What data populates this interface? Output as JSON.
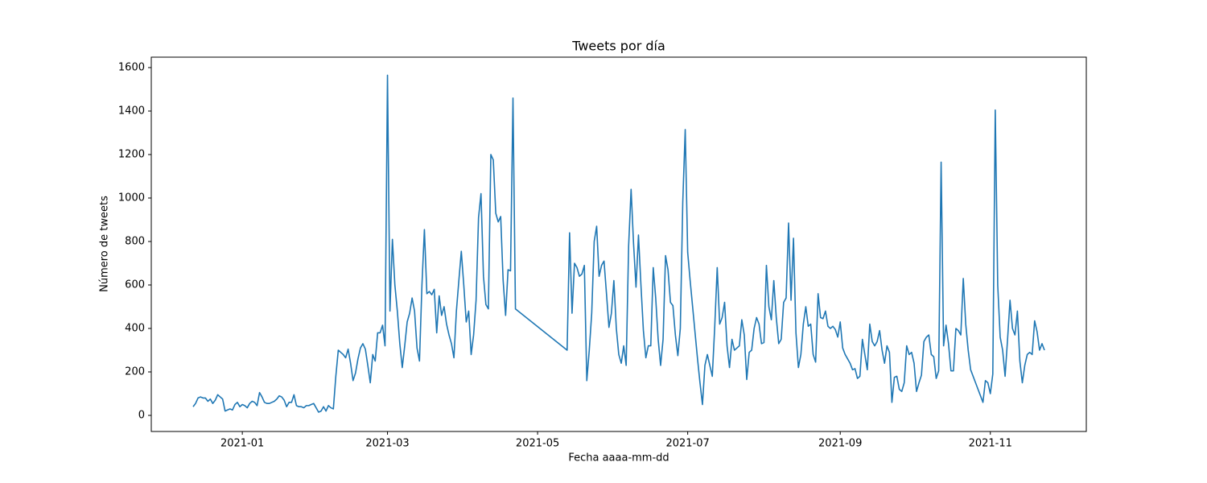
{
  "chart_data": {
    "type": "line",
    "title": "Tweets por día",
    "xlabel": "Fecha aaaa-mm-dd",
    "ylabel": "Número de tweets",
    "xlim": [
      "2020-11-25",
      "2021-12-10"
    ],
    "ylim": [
      -74,
      1648
    ],
    "xticks": [
      {
        "value": "2021-01-01",
        "label": "2021-01"
      },
      {
        "value": "2021-03-01",
        "label": "2021-03"
      },
      {
        "value": "2021-05-01",
        "label": "2021-05"
      },
      {
        "value": "2021-07-01",
        "label": "2021-07"
      },
      {
        "value": "2021-09-01",
        "label": "2021-09"
      },
      {
        "value": "2021-11-01",
        "label": "2021-11"
      }
    ],
    "yticks": [
      0,
      200,
      400,
      600,
      800,
      1000,
      1200,
      1400,
      1600
    ],
    "color": "#1f77b4",
    "x": [
      "2020-12-12",
      "2020-12-13",
      "2020-12-14",
      "2020-12-15",
      "2020-12-16",
      "2020-12-17",
      "2020-12-18",
      "2020-12-19",
      "2020-12-20",
      "2020-12-21",
      "2020-12-22",
      "2020-12-23",
      "2020-12-24",
      "2020-12-25",
      "2020-12-26",
      "2020-12-27",
      "2020-12-28",
      "2020-12-29",
      "2020-12-30",
      "2020-12-31",
      "2021-01-01",
      "2021-01-02",
      "2021-01-03",
      "2021-01-04",
      "2021-01-05",
      "2021-01-06",
      "2021-01-07",
      "2021-01-08",
      "2021-01-09",
      "2021-01-10",
      "2021-01-11",
      "2021-01-12",
      "2021-01-13",
      "2021-01-14",
      "2021-01-15",
      "2021-01-16",
      "2021-01-17",
      "2021-01-18",
      "2021-01-19",
      "2021-01-20",
      "2021-01-21",
      "2021-01-22",
      "2021-01-23",
      "2021-01-24",
      "2021-01-25",
      "2021-01-26",
      "2021-01-27",
      "2021-01-28",
      "2021-01-29",
      "2021-01-30",
      "2021-01-31",
      "2021-02-01",
      "2021-02-02",
      "2021-02-03",
      "2021-02-04",
      "2021-02-05",
      "2021-02-06",
      "2021-02-07",
      "2021-02-08",
      "2021-02-09",
      "2021-02-10",
      "2021-02-11",
      "2021-02-12",
      "2021-02-13",
      "2021-02-14",
      "2021-02-15",
      "2021-02-16",
      "2021-02-17",
      "2021-02-18",
      "2021-02-19",
      "2021-02-20",
      "2021-02-21",
      "2021-02-22",
      "2021-02-23",
      "2021-02-24",
      "2021-02-25",
      "2021-02-26",
      "2021-02-27",
      "2021-02-28",
      "2021-03-01",
      "2021-03-02",
      "2021-03-03",
      "2021-03-04",
      "2021-03-05",
      "2021-03-06",
      "2021-03-07",
      "2021-03-08",
      "2021-03-09",
      "2021-03-10",
      "2021-03-11",
      "2021-03-12",
      "2021-03-13",
      "2021-03-14",
      "2021-03-15",
      "2021-03-16",
      "2021-03-17",
      "2021-03-18",
      "2021-03-19",
      "2021-03-20",
      "2021-03-21",
      "2021-03-22",
      "2021-03-23",
      "2021-03-24",
      "2021-03-25",
      "2021-03-26",
      "2021-03-27",
      "2021-03-28",
      "2021-03-29",
      "2021-03-30",
      "2021-03-31",
      "2021-04-01",
      "2021-04-02",
      "2021-04-03",
      "2021-04-04",
      "2021-04-05",
      "2021-04-06",
      "2021-04-07",
      "2021-04-08",
      "2021-04-09",
      "2021-04-10",
      "2021-04-11",
      "2021-04-12",
      "2021-04-13",
      "2021-04-14",
      "2021-04-15",
      "2021-04-16",
      "2021-04-17",
      "2021-04-18",
      "2021-04-19",
      "2021-04-20",
      "2021-04-21",
      "2021-04-22",
      "2021-05-13",
      "2021-05-14",
      "2021-05-15",
      "2021-05-16",
      "2021-05-17",
      "2021-05-18",
      "2021-05-19",
      "2021-05-20",
      "2021-05-21",
      "2021-05-22",
      "2021-05-23",
      "2021-05-24",
      "2021-05-25",
      "2021-05-26",
      "2021-05-27",
      "2021-05-28",
      "2021-05-29",
      "2021-05-30",
      "2021-05-31",
      "2021-06-01",
      "2021-06-02",
      "2021-06-03",
      "2021-06-04",
      "2021-06-05",
      "2021-06-06",
      "2021-06-07",
      "2021-06-08",
      "2021-06-09",
      "2021-06-10",
      "2021-06-11",
      "2021-06-12",
      "2021-06-13",
      "2021-06-14",
      "2021-06-15",
      "2021-06-16",
      "2021-06-17",
      "2021-06-18",
      "2021-06-19",
      "2021-06-20",
      "2021-06-21",
      "2021-06-22",
      "2021-06-23",
      "2021-06-24",
      "2021-06-25",
      "2021-06-26",
      "2021-06-27",
      "2021-06-28",
      "2021-06-29",
      "2021-06-30",
      "2021-07-01",
      "2021-07-02",
      "2021-07-03",
      "2021-07-04",
      "2021-07-05",
      "2021-07-06",
      "2021-07-07",
      "2021-07-08",
      "2021-07-09",
      "2021-07-10",
      "2021-07-11",
      "2021-07-12",
      "2021-07-13",
      "2021-07-14",
      "2021-07-15",
      "2021-07-16",
      "2021-07-17",
      "2021-07-18",
      "2021-07-19",
      "2021-07-20",
      "2021-07-21",
      "2021-07-22",
      "2021-07-23",
      "2021-07-24",
      "2021-07-25",
      "2021-07-26",
      "2021-07-27",
      "2021-07-28",
      "2021-07-29",
      "2021-07-30",
      "2021-07-31",
      "2021-08-01",
      "2021-08-02",
      "2021-08-03",
      "2021-08-04",
      "2021-08-05",
      "2021-08-06",
      "2021-08-07",
      "2021-08-08",
      "2021-08-09",
      "2021-08-10",
      "2021-08-11",
      "2021-08-12",
      "2021-08-13",
      "2021-08-14",
      "2021-08-15",
      "2021-08-16",
      "2021-08-17",
      "2021-08-18",
      "2021-08-19",
      "2021-08-20",
      "2021-08-21",
      "2021-08-22",
      "2021-08-23",
      "2021-08-24",
      "2021-08-25",
      "2021-08-26",
      "2021-08-27",
      "2021-08-28",
      "2021-08-29",
      "2021-08-30",
      "2021-08-31",
      "2021-09-01",
      "2021-09-02",
      "2021-09-03",
      "2021-09-04",
      "2021-09-05",
      "2021-09-06",
      "2021-09-07",
      "2021-09-08",
      "2021-09-09",
      "2021-09-10",
      "2021-09-11",
      "2021-09-12",
      "2021-09-13",
      "2021-09-14",
      "2021-09-15",
      "2021-09-16",
      "2021-09-17",
      "2021-09-18",
      "2021-09-19",
      "2021-09-20",
      "2021-09-21",
      "2021-09-22",
      "2021-09-23",
      "2021-09-24",
      "2021-09-25",
      "2021-09-26",
      "2021-09-27",
      "2021-09-28",
      "2021-09-29",
      "2021-09-30",
      "2021-10-01",
      "2021-10-02",
      "2021-10-03",
      "2021-10-04",
      "2021-10-05",
      "2021-10-06",
      "2021-10-07",
      "2021-10-08",
      "2021-10-09",
      "2021-10-10",
      "2021-10-11",
      "2021-10-12",
      "2021-10-13",
      "2021-10-14",
      "2021-10-15",
      "2021-10-16",
      "2021-10-17",
      "2021-10-18",
      "2021-10-19",
      "2021-10-20",
      "2021-10-21",
      "2021-10-22",
      "2021-10-23",
      "2021-10-24",
      "2021-10-25",
      "2021-10-26",
      "2021-10-27",
      "2021-10-28",
      "2021-10-29",
      "2021-10-30",
      "2021-10-31",
      "2021-11-01",
      "2021-11-02",
      "2021-11-03",
      "2021-11-04",
      "2021-11-05",
      "2021-11-06",
      "2021-11-07",
      "2021-11-08",
      "2021-11-09",
      "2021-11-10",
      "2021-11-11",
      "2021-11-12",
      "2021-11-13",
      "2021-11-14",
      "2021-11-15",
      "2021-11-16",
      "2021-11-17",
      "2021-11-18",
      "2021-11-19",
      "2021-11-20",
      "2021-11-21",
      "2021-11-22",
      "2021-11-23"
    ],
    "values": [
      40,
      55,
      80,
      85,
      80,
      80,
      65,
      75,
      55,
      70,
      95,
      85,
      75,
      20,
      25,
      30,
      25,
      50,
      60,
      40,
      50,
      45,
      35,
      55,
      65,
      60,
      45,
      105,
      85,
      60,
      55,
      55,
      60,
      65,
      75,
      90,
      85,
      70,
      40,
      60,
      60,
      95,
      45,
      40,
      40,
      35,
      45,
      45,
      50,
      55,
      35,
      15,
      20,
      40,
      20,
      45,
      35,
      30,
      180,
      300,
      290,
      280,
      265,
      305,
      240,
      160,
      195,
      260,
      310,
      330,
      305,
      230,
      150,
      280,
      250,
      380,
      380,
      415,
      320,
      1565,
      480,
      810,
      600,
      480,
      330,
      220,
      320,
      430,
      470,
      540,
      480,
      310,
      250,
      600,
      855,
      560,
      570,
      555,
      580,
      380,
      550,
      460,
      500,
      420,
      370,
      330,
      265,
      480,
      620,
      755,
      600,
      430,
      480,
      280,
      370,
      530,
      910,
      1020,
      640,
      510,
      490,
      1200,
      1175,
      930,
      890,
      915,
      620,
      460,
      670,
      665,
      1460,
      490,
      300,
      840,
      470,
      700,
      680,
      640,
      650,
      690,
      160,
      300,
      470,
      800,
      870,
      640,
      690,
      710,
      560,
      405,
      470,
      620,
      400,
      280,
      240,
      320,
      230,
      780,
      1040,
      790,
      590,
      830,
      600,
      390,
      265,
      320,
      320,
      680,
      540,
      350,
      230,
      350,
      735,
      670,
      520,
      505,
      370,
      275,
      400,
      980,
      1315,
      750,
      620,
      500,
      380,
      260,
      150,
      50,
      230,
      280,
      230,
      180,
      410,
      680,
      420,
      450,
      520,
      320,
      220,
      350,
      300,
      310,
      320,
      440,
      370,
      165,
      290,
      300,
      400,
      450,
      420,
      330,
      335,
      690,
      500,
      440,
      620,
      450,
      330,
      350,
      520,
      540,
      885,
      530,
      815,
      380,
      220,
      280,
      420,
      500,
      410,
      420,
      280,
      245,
      560,
      450,
      445,
      480,
      410,
      400,
      410,
      395,
      360,
      430,
      310,
      280,
      260,
      240,
      210,
      215,
      170,
      180,
      350,
      280,
      210,
      420,
      340,
      320,
      340,
      390,
      300,
      240,
      320,
      290,
      60,
      175,
      180,
      120,
      110,
      150,
      320,
      280,
      290,
      240,
      110,
      150,
      185,
      340,
      360,
      370,
      280,
      270,
      170,
      205,
      1165,
      320,
      415,
      330,
      205,
      205,
      400,
      390,
      370,
      630,
      420,
      300,
      210,
      180,
      150,
      120,
      90,
      60,
      160,
      150,
      100,
      190,
      1405,
      600,
      360,
      300,
      180,
      350,
      530,
      400,
      370,
      480,
      250,
      150,
      230,
      280,
      290,
      280,
      435,
      385,
      300,
      330,
      300
    ]
  }
}
